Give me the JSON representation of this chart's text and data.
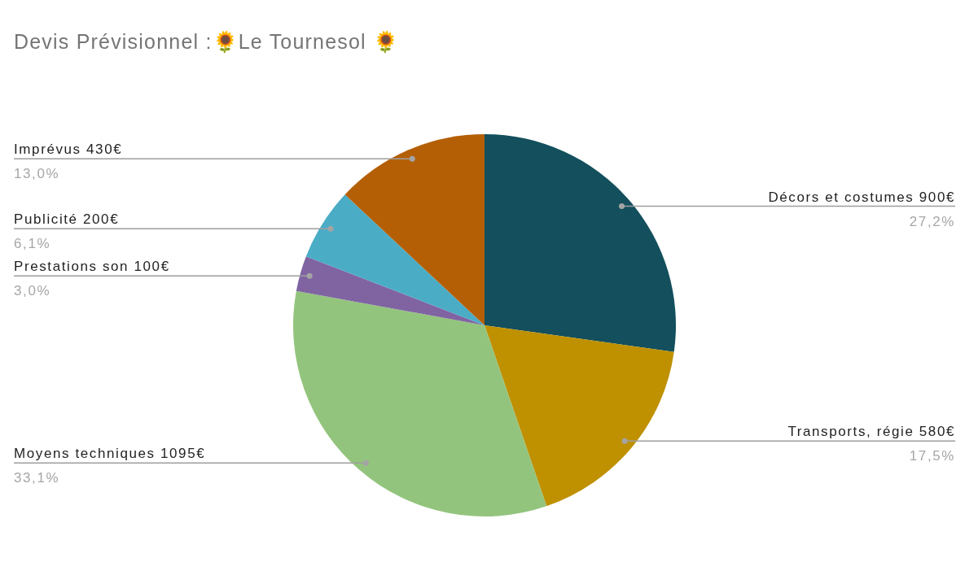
{
  "chart_data": {
    "type": "pie",
    "title": "Devis Prévisionnel :🌻Le Tournesol 🌻",
    "categories": [
      "Décors et costumes 900€",
      "Transports, régie 580€",
      "Moyens techniques 1095€",
      "Prestations son 100€",
      "Publicité  200€",
      "Imprévus 430€"
    ],
    "values": [
      27.2,
      17.5,
      33.1,
      3.0,
      6.1,
      13.0
    ],
    "colors": [
      "#134f5c",
      "#bf9000",
      "#93c47d",
      "#8064a2",
      "#4bacc6",
      "#b45f06"
    ],
    "value_labels": [
      "27,2%",
      "17,5%",
      "33,1%",
      "3,0%",
      "6,1%",
      "13,0%"
    ]
  }
}
